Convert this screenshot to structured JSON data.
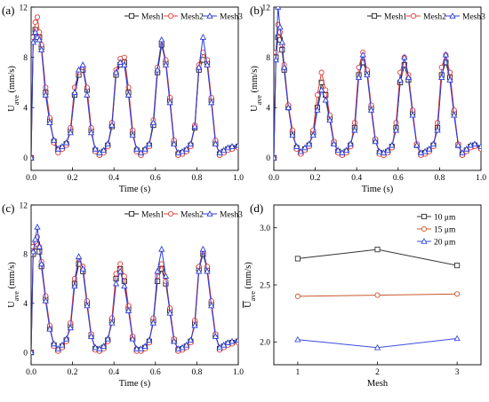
{
  "chart_data": [
    {
      "type": "line",
      "panel_label": "(a)",
      "xlabel": "Time (s)",
      "ylabel_main": "U",
      "ylabel_sub": "ave",
      "ylabel_unit": "(mm/s)",
      "xlim": [
        0,
        1.0
      ],
      "ylim": [
        -1,
        12
      ],
      "xticks": [
        "0.0",
        "0.2",
        "0.4",
        "0.6",
        "0.8",
        "1.0"
      ],
      "yticks": [
        "0",
        "4",
        "8",
        "12"
      ],
      "grid": false,
      "legend_position": "top-right",
      "x": [
        0.0,
        0.01,
        0.02,
        0.03,
        0.04,
        0.05,
        0.07,
        0.09,
        0.11,
        0.13,
        0.15,
        0.17,
        0.19,
        0.21,
        0.23,
        0.25,
        0.27,
        0.29,
        0.31,
        0.33,
        0.35,
        0.37,
        0.39,
        0.41,
        0.43,
        0.45,
        0.47,
        0.49,
        0.51,
        0.53,
        0.55,
        0.57,
        0.59,
        0.61,
        0.63,
        0.65,
        0.67,
        0.69,
        0.71,
        0.73,
        0.75,
        0.77,
        0.79,
        0.81,
        0.83,
        0.85,
        0.87,
        0.89,
        0.91,
        0.93,
        0.95,
        0.97,
        1.0
      ],
      "series": [
        {
          "name": "Mesh1",
          "color": "#222222",
          "marker": "square",
          "values": [
            0,
            9.4,
            10.2,
            9.8,
            9.6,
            8.8,
            5.2,
            3.0,
            1.3,
            0.6,
            0.8,
            1.1,
            2.2,
            5.0,
            6.6,
            7.0,
            5.4,
            2.2,
            0.6,
            0.3,
            0.5,
            1.0,
            2.5,
            6.6,
            7.4,
            7.6,
            5.2,
            2.0,
            0.6,
            0.3,
            0.6,
            1.0,
            2.6,
            6.8,
            9.0,
            7.6,
            4.6,
            1.2,
            0.3,
            0.4,
            0.6,
            1.0,
            2.4,
            7.0,
            7.8,
            7.6,
            4.6,
            1.2,
            0.3,
            0.5,
            0.7,
            0.8,
            0.9
          ]
        },
        {
          "name": "Mesh2",
          "color": "#e0403a",
          "marker": "circle",
          "values": [
            0,
            9.6,
            10.8,
            11.2,
            10.0,
            9.0,
            5.6,
            3.2,
            1.2,
            0.4,
            0.7,
            1.0,
            2.4,
            5.6,
            6.8,
            7.2,
            5.6,
            2.4,
            0.5,
            0.2,
            0.4,
            0.9,
            2.8,
            7.0,
            7.9,
            8.0,
            5.6,
            2.2,
            0.5,
            0.2,
            0.5,
            0.9,
            3.0,
            7.2,
            9.2,
            7.8,
            4.8,
            1.4,
            0.2,
            0.3,
            0.5,
            0.9,
            2.6,
            7.4,
            8.4,
            7.8,
            4.8,
            1.4,
            0.2,
            0.4,
            0.6,
            0.7,
            0.8
          ]
        },
        {
          "name": "Mesh3",
          "color": "#2a3bd9",
          "marker": "triangle",
          "values": [
            0,
            9.2,
            10.0,
            9.6,
            9.4,
            8.6,
            5.0,
            2.8,
            1.4,
            0.7,
            0.9,
            1.2,
            2.0,
            5.2,
            7.0,
            7.4,
            5.0,
            2.0,
            0.7,
            0.4,
            0.6,
            1.1,
            2.6,
            6.8,
            7.6,
            7.4,
            5.0,
            1.8,
            0.7,
            0.4,
            0.7,
            1.1,
            2.8,
            7.0,
            9.4,
            7.4,
            4.4,
            1.1,
            0.4,
            0.5,
            0.7,
            1.1,
            2.5,
            7.2,
            9.6,
            7.4,
            4.4,
            1.1,
            0.4,
            0.6,
            0.8,
            0.9,
            1.0
          ]
        }
      ]
    },
    {
      "type": "line",
      "panel_label": "(b)",
      "xlabel": "Time (s)",
      "ylabel_main": "U",
      "ylabel_sub": "ave",
      "ylabel_unit": "(mm/s)",
      "xlim": [
        0,
        1.0
      ],
      "ylim": [
        -1,
        12
      ],
      "xticks": [
        "0.0",
        "0.2",
        "0.4",
        "0.6",
        "0.8",
        "1.0"
      ],
      "yticks": [
        "0",
        "4",
        "8",
        "12"
      ],
      "grid": false,
      "legend_position": "top-right",
      "x": [
        0.0,
        0.01,
        0.02,
        0.03,
        0.04,
        0.05,
        0.07,
        0.09,
        0.11,
        0.13,
        0.15,
        0.17,
        0.19,
        0.21,
        0.23,
        0.25,
        0.27,
        0.29,
        0.31,
        0.33,
        0.35,
        0.37,
        0.39,
        0.41,
        0.43,
        0.45,
        0.47,
        0.49,
        0.51,
        0.53,
        0.55,
        0.57,
        0.59,
        0.61,
        0.63,
        0.65,
        0.67,
        0.69,
        0.71,
        0.73,
        0.75,
        0.77,
        0.79,
        0.81,
        0.83,
        0.85,
        0.87,
        0.89,
        0.91,
        0.93,
        0.95,
        0.97,
        1.0
      ],
      "series": [
        {
          "name": "Mesh1",
          "color": "#222222",
          "marker": "square",
          "values": [
            0,
            8.0,
            9.6,
            9.4,
            8.6,
            7.0,
            4.0,
            2.0,
            0.8,
            0.4,
            0.7,
            1.0,
            2.0,
            4.0,
            6.0,
            5.0,
            3.2,
            1.2,
            0.5,
            0.3,
            0.5,
            1.0,
            2.4,
            6.6,
            7.6,
            6.8,
            4.0,
            1.4,
            0.4,
            0.3,
            0.5,
            0.9,
            2.4,
            6.0,
            7.4,
            6.2,
            3.6,
            1.0,
            0.3,
            0.4,
            0.6,
            1.0,
            2.4,
            6.6,
            7.6,
            6.4,
            3.6,
            1.0,
            0.3,
            0.6,
            0.9,
            1.0,
            0.8
          ]
        },
        {
          "name": "Mesh2",
          "color": "#e0403a",
          "marker": "circle",
          "values": [
            0,
            8.4,
            10.6,
            10.0,
            9.0,
            7.4,
            4.2,
            2.2,
            0.7,
            0.3,
            0.6,
            0.9,
            2.2,
            5.0,
            6.8,
            5.4,
            3.4,
            1.3,
            0.4,
            0.2,
            0.4,
            0.9,
            2.8,
            7.2,
            8.4,
            7.0,
            4.2,
            1.5,
            0.3,
            0.2,
            0.4,
            0.8,
            2.8,
            6.8,
            8.0,
            6.6,
            3.8,
            1.1,
            0.2,
            0.3,
            0.5,
            0.9,
            2.8,
            7.2,
            8.2,
            6.8,
            3.8,
            1.1,
            0.2,
            0.5,
            0.8,
            0.9,
            0.7
          ]
        },
        {
          "name": "Mesh3",
          "color": "#2a3bd9",
          "marker": "triangle",
          "values": [
            0,
            7.8,
            12.0,
            10.4,
            9.2,
            7.2,
            4.0,
            1.8,
            0.9,
            0.5,
            0.8,
            1.1,
            1.8,
            3.8,
            5.4,
            4.6,
            3.0,
            1.1,
            0.6,
            0.4,
            0.6,
            1.1,
            2.2,
            6.4,
            8.2,
            6.6,
            3.8,
            1.3,
            0.5,
            0.4,
            0.6,
            1.0,
            2.2,
            6.2,
            8.0,
            6.4,
            3.4,
            1.0,
            0.4,
            0.5,
            0.7,
            1.1,
            2.2,
            6.4,
            8.2,
            6.2,
            3.4,
            1.0,
            0.4,
            0.7,
            1.0,
            1.1,
            0.9
          ]
        }
      ]
    },
    {
      "type": "line",
      "panel_label": "(c)",
      "xlabel": "Time (s)",
      "ylabel_main": "U",
      "ylabel_sub": "ave",
      "ylabel_unit": "(mm/s)",
      "xlim": [
        0,
        1.0
      ],
      "ylim": [
        -1,
        12
      ],
      "xticks": [
        "0.0",
        "0.2",
        "0.4",
        "0.6",
        "0.8",
        "1.0"
      ],
      "yticks": [
        "0",
        "4",
        "8",
        "12"
      ],
      "grid": false,
      "legend_position": "top-right",
      "x": [
        0.0,
        0.01,
        0.02,
        0.03,
        0.04,
        0.05,
        0.07,
        0.09,
        0.11,
        0.13,
        0.15,
        0.17,
        0.19,
        0.21,
        0.23,
        0.25,
        0.27,
        0.29,
        0.31,
        0.33,
        0.35,
        0.37,
        0.39,
        0.41,
        0.43,
        0.45,
        0.47,
        0.49,
        0.51,
        0.53,
        0.55,
        0.57,
        0.59,
        0.61,
        0.63,
        0.65,
        0.67,
        0.69,
        0.71,
        0.73,
        0.75,
        0.77,
        0.79,
        0.81,
        0.83,
        0.85,
        0.87,
        0.89,
        0.91,
        0.93,
        0.95,
        0.97,
        1.0
      ],
      "series": [
        {
          "name": "Mesh1",
          "color": "#222222",
          "marker": "square",
          "values": [
            0,
            8.0,
            8.6,
            8.8,
            8.2,
            7.0,
            4.4,
            2.0,
            0.6,
            0.2,
            0.5,
            1.0,
            2.2,
            5.6,
            7.2,
            6.6,
            4.0,
            1.4,
            0.3,
            0.2,
            0.4,
            1.0,
            2.6,
            6.0,
            6.8,
            5.8,
            3.6,
            1.2,
            0.2,
            0.2,
            0.4,
            0.9,
            2.6,
            5.8,
            6.8,
            5.6,
            3.4,
            1.0,
            0.2,
            0.3,
            0.5,
            0.9,
            2.4,
            6.8,
            8.0,
            6.8,
            4.0,
            1.4,
            0.3,
            0.5,
            0.7,
            0.8,
            0.9
          ]
        },
        {
          "name": "Mesh2",
          "color": "#e0403a",
          "marker": "circle",
          "values": [
            0,
            8.6,
            9.0,
            9.4,
            8.6,
            7.4,
            4.6,
            2.2,
            0.5,
            0.1,
            0.4,
            0.9,
            2.4,
            6.0,
            7.6,
            7.0,
            4.2,
            1.5,
            0.2,
            0.1,
            0.3,
            0.9,
            2.8,
            6.4,
            7.2,
            6.2,
            3.8,
            1.3,
            0.1,
            0.1,
            0.3,
            0.8,
            2.8,
            6.2,
            7.2,
            5.8,
            3.6,
            1.1,
            0.1,
            0.2,
            0.4,
            0.8,
            2.6,
            7.0,
            8.2,
            7.0,
            4.2,
            1.5,
            0.2,
            0.4,
            0.6,
            0.7,
            0.8
          ]
        },
        {
          "name": "Mesh3",
          "color": "#2a3bd9",
          "marker": "triangle",
          "values": [
            0,
            8.2,
            9.2,
            10.2,
            8.6,
            7.2,
            4.2,
            1.9,
            0.7,
            0.3,
            0.6,
            1.1,
            2.0,
            5.4,
            7.8,
            6.8,
            3.8,
            1.3,
            0.4,
            0.3,
            0.5,
            1.1,
            2.4,
            5.6,
            6.6,
            5.4,
            3.4,
            1.1,
            0.3,
            0.3,
            0.5,
            1.0,
            2.4,
            6.6,
            8.4,
            6.2,
            3.2,
            0.9,
            0.3,
            0.4,
            0.6,
            1.0,
            2.2,
            6.6,
            8.4,
            6.6,
            3.8,
            1.3,
            0.4,
            0.6,
            0.8,
            0.9,
            1.0
          ]
        }
      ]
    },
    {
      "type": "line",
      "panel_label": "(d)",
      "xlabel": "Mesh",
      "ylabel_main": "U",
      "ylabel_sub": "ave",
      "ylabel_unit": "(mm/s)",
      "ylabel_overline": true,
      "categories": [
        "1",
        "2",
        "3"
      ],
      "xlim": [
        0.7,
        3.3
      ],
      "ylim": [
        1.8,
        3.2
      ],
      "xticks": [
        "1",
        "2",
        "3"
      ],
      "yticks": [
        "2.0",
        "2.5",
        "3.0"
      ],
      "grid": false,
      "legend_position": "top-right",
      "series": [
        {
          "name": "10 μm",
          "color": "#333333",
          "marker": "square",
          "values": [
            2.73,
            2.81,
            2.67
          ]
        },
        {
          "name": "15 μm",
          "color": "#c8582a",
          "marker": "circle",
          "values": [
            2.4,
            2.41,
            2.42
          ]
        },
        {
          "name": "20 μm",
          "color": "#3a4ce0",
          "marker": "triangle",
          "values": [
            2.02,
            1.95,
            2.03
          ]
        }
      ]
    }
  ]
}
